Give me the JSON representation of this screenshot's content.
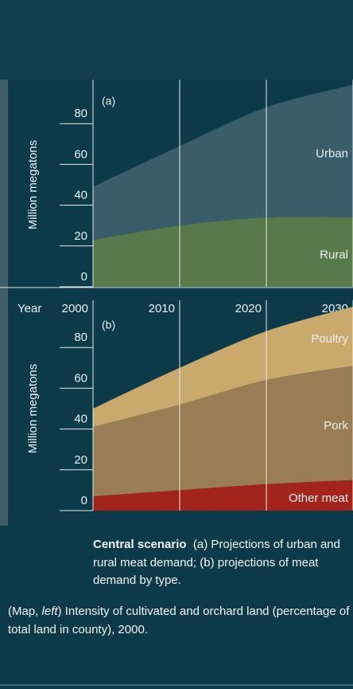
{
  "chart_data": [
    {
      "type": "area",
      "panel": "(a)",
      "ylabel": "Million megatons",
      "xlabel": "Year",
      "x": [
        2000,
        2010,
        2020,
        2030
      ],
      "xlim": [
        2000,
        2030
      ],
      "xticks": [
        2000,
        2010,
        2020,
        2030
      ],
      "ylim": [
        0,
        100
      ],
      "yticks": [
        0,
        20,
        40,
        60,
        80
      ],
      "series": [
        {
          "name": "Rural",
          "color": "#587a4a",
          "values": [
            23,
            30,
            34,
            34
          ]
        },
        {
          "name": "Urban",
          "color": "#3a5e69",
          "values": [
            26,
            39,
            54,
            65
          ]
        }
      ]
    },
    {
      "type": "area",
      "panel": "(b)",
      "ylabel": "Million megatons",
      "x": [
        2000,
        2010,
        2020,
        2030
      ],
      "xlim": [
        2000,
        2030
      ],
      "xticks": [
        2000,
        2010,
        2020,
        2030
      ],
      "ylim": [
        0,
        100
      ],
      "yticks": [
        0,
        20,
        40,
        60,
        80
      ],
      "series": [
        {
          "name": "Other meat",
          "color": "#a2241a",
          "values": [
            7,
            10,
            13,
            15
          ]
        },
        {
          "name": "Pork",
          "color": "#9b7d55",
          "values": [
            34,
            42,
            51,
            56
          ]
        },
        {
          "name": "Poultry",
          "color": "#c9aa6c",
          "values": [
            9,
            18,
            24,
            29
          ]
        }
      ]
    }
  ],
  "caption": {
    "title": "Central scenario",
    "text": "(a) Projections of urban and rural meat demand; (b) projections of meat demand by type."
  },
  "note": {
    "before": "(Map, ",
    "italic": "left",
    "after": ") Intensity of cultivated and orchard land (percentage of total land in county), 2000."
  }
}
